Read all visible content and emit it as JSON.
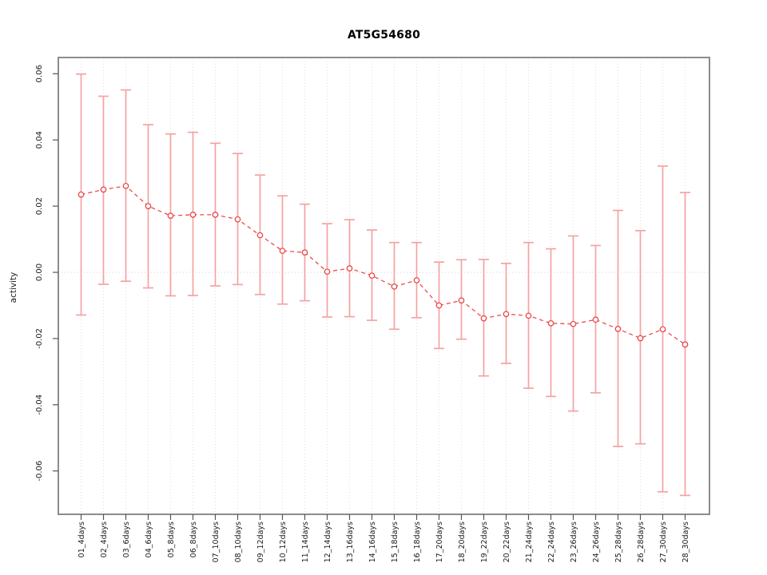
{
  "chart_data": {
    "type": "line",
    "title": "AT5G54680",
    "xlabel": "",
    "ylabel": "activity",
    "legend_position": "none",
    "grid": "vertical-dotted-per-category-plus-dotted-zero-line",
    "marker": "open-circle",
    "line_style": "dashed",
    "error_bars": true,
    "ylim": [
      -0.0731,
      0.0649
    ],
    "yticks": [
      -0.06,
      -0.04,
      -0.02,
      0.0,
      0.02,
      0.04,
      0.06
    ],
    "ytick_labels": [
      "-0.06",
      "-0.04",
      "-0.02",
      "0.00",
      "0.02",
      "0.04",
      "0.06"
    ],
    "categories": [
      "01_4days",
      "02_4days",
      "03_6days",
      "04_6days",
      "05_8days",
      "06_8days",
      "07_10days",
      "08_10days",
      "09_12days",
      "10_12days",
      "11_14days",
      "12_14days",
      "13_16days",
      "14_16days",
      "15_18days",
      "16_18days",
      "17_20days",
      "18_20days",
      "19_22days",
      "20_22days",
      "21_24days",
      "22_24days",
      "23_26days",
      "24_26days",
      "25_28days",
      "26_28days",
      "27_30days",
      "28_30days"
    ],
    "series": [
      {
        "name": "activity",
        "values": [
          0.0235,
          0.025,
          0.0261,
          0.02,
          0.0171,
          0.0174,
          0.0174,
          0.016,
          0.0112,
          0.0065,
          0.006,
          0.0002,
          0.0012,
          -0.001,
          -0.0043,
          -0.0024,
          -0.01,
          -0.0085,
          -0.0139,
          -0.0126,
          -0.0131,
          -0.0154,
          -0.0156,
          -0.0143,
          -0.0171,
          -0.0199,
          -0.0172,
          -0.0218
        ],
        "error_upper": [
          0.0599,
          0.0532,
          0.0551,
          0.0446,
          0.0418,
          0.0423,
          0.039,
          0.0359,
          0.0294,
          0.0231,
          0.0206,
          0.0147,
          0.0159,
          0.0128,
          0.009,
          0.009,
          0.0031,
          0.0038,
          0.0039,
          0.0027,
          0.009,
          0.0071,
          0.011,
          0.0081,
          0.0187,
          0.0126,
          0.0321,
          0.0241
        ],
        "error_lower": [
          -0.0129,
          -0.0036,
          -0.0027,
          -0.0047,
          -0.0071,
          -0.007,
          -0.0041,
          -0.0037,
          -0.0067,
          -0.0096,
          -0.0086,
          -0.0135,
          -0.0134,
          -0.0145,
          -0.0172,
          -0.0137,
          -0.023,
          -0.0202,
          -0.0313,
          -0.0275,
          -0.035,
          -0.0375,
          -0.0419,
          -0.0364,
          -0.0526,
          -0.0518,
          -0.0663,
          -0.0674
        ]
      }
    ]
  },
  "colors": {
    "series_line": "#ef4a4a",
    "marker_stroke": "#ea4848",
    "marker_fill": "#ffffff",
    "error_bar": "#f5a2a2",
    "gridline": "#dedede",
    "zero_line": "#cccccc",
    "frame": "#8c8c8c",
    "tick": "#555555",
    "tick_text": "#1a1a1a"
  }
}
